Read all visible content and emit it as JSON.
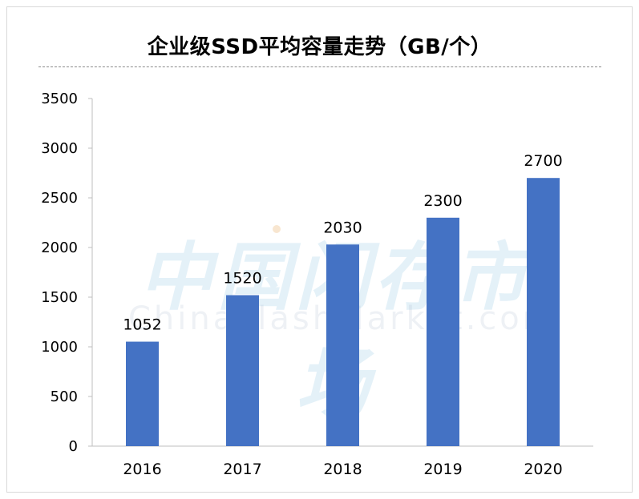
{
  "chart_data": {
    "type": "bar",
    "title": "企业级SSD平均容量走势（GB/个）",
    "categories": [
      "2016",
      "2017",
      "2018",
      "2019",
      "2020"
    ],
    "values": [
      1052,
      1520,
      2030,
      2300,
      2700
    ],
    "data_labels": [
      "1052",
      "1520",
      "2030",
      "2300",
      "2700"
    ],
    "y_ticks": [
      "0",
      "500",
      "1000",
      "1500",
      "2000",
      "2500",
      "3000",
      "3500"
    ],
    "ylim": [
      0,
      3500
    ],
    "grid": false,
    "legend": "none",
    "xlabel": "",
    "ylabel": "",
    "bar_color": "#4472C4"
  },
  "watermark": {
    "cn": "中国闪存市场",
    "en": "ChinaFlashMarket.com"
  }
}
